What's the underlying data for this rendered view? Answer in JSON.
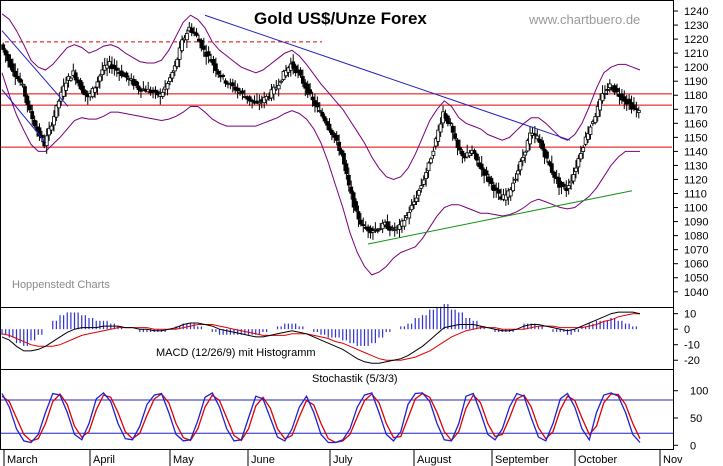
{
  "header": {
    "title": "Gold US$/Unze Forex",
    "website": "www.chartbuero.de",
    "source_label": "Hoppenstedt Charts"
  },
  "colors": {
    "candle": "#000000",
    "bollinger": "#7a007a",
    "support_resistance": "#e00000",
    "trendline_down": "#2020c0",
    "trendline_up": "#109010",
    "macd_line": "#000000",
    "macd_signal": "#e00000",
    "histogram": "#3030d0",
    "stoch_k": "#2020d0",
    "stoch_d": "#e00000",
    "axis_box": "#000000"
  },
  "chart_data": [
    {
      "type": "candlestick",
      "title": "Gold US$/Unze Forex",
      "y_ticks": [
        1040,
        1050,
        1060,
        1070,
        1080,
        1090,
        1100,
        1110,
        1120,
        1130,
        1140,
        1150,
        1160,
        1170,
        1180,
        1190,
        1200,
        1210,
        1220,
        1230,
        1240
      ],
      "ylim": [
        1032,
        1245
      ],
      "months": [
        "March",
        "April",
        "May",
        "June",
        "July",
        "August",
        "September",
        "October",
        "Nov"
      ],
      "horizontal_lines": [
        {
          "level": 1181,
          "color": "red",
          "style": "solid"
        },
        {
          "level": 1173,
          "color": "red",
          "style": "solid"
        },
        {
          "level": 1143,
          "color": "red",
          "style": "solid"
        },
        {
          "level": 1218,
          "color": "red",
          "style": "dashed",
          "from": "March",
          "to": "June"
        }
      ],
      "trendlines": [
        {
          "name": "downtrend",
          "color": "blue",
          "from": [
            "May",
            1237
          ],
          "to": [
            "October",
            1148
          ]
        },
        {
          "name": "uptrend",
          "color": "green",
          "from": [
            "July",
            1074
          ],
          "to": [
            "October",
            1112
          ]
        }
      ],
      "close_path": [
        1216,
        1205,
        1195,
        1186,
        1168,
        1155,
        1145,
        1160,
        1176,
        1190,
        1196,
        1186,
        1178,
        1186,
        1198,
        1202,
        1198,
        1194,
        1190,
        1185,
        1184,
        1182,
        1180,
        1188,
        1200,
        1218,
        1228,
        1222,
        1212,
        1205,
        1196,
        1190,
        1186,
        1182,
        1178,
        1174,
        1176,
        1180,
        1186,
        1195,
        1202,
        1196,
        1186,
        1176,
        1168,
        1160,
        1150,
        1138,
        1115,
        1096,
        1086,
        1084,
        1085,
        1088,
        1084,
        1086,
        1094,
        1104,
        1116,
        1130,
        1148,
        1168,
        1158,
        1142,
        1136,
        1140,
        1130,
        1122,
        1114,
        1106,
        1110,
        1122,
        1136,
        1152,
        1150,
        1138,
        1126,
        1116,
        1113,
        1124,
        1140,
        1154,
        1166,
        1180,
        1187,
        1182,
        1177,
        1172,
        1168
      ],
      "bollinger_upper": [
        1238,
        1234,
        1226,
        1216,
        1205,
        1200,
        1198,
        1202,
        1208,
        1214,
        1216,
        1214,
        1210,
        1212,
        1215,
        1216,
        1214,
        1210,
        1207,
        1204,
        1203,
        1203,
        1205,
        1212,
        1222,
        1232,
        1237,
        1234,
        1228,
        1218,
        1212,
        1208,
        1204,
        1200,
        1198,
        1196,
        1198,
        1202,
        1206,
        1210,
        1212,
        1208,
        1202,
        1195,
        1188,
        1182,
        1176,
        1170,
        1162,
        1154,
        1146,
        1136,
        1128,
        1122,
        1120,
        1122,
        1128,
        1138,
        1150,
        1162,
        1170,
        1176,
        1172,
        1164,
        1160,
        1158,
        1156,
        1152,
        1150,
        1148,
        1150,
        1155,
        1160,
        1164,
        1164,
        1160,
        1155,
        1150,
        1148,
        1152,
        1160,
        1172,
        1185,
        1196,
        1200,
        1202,
        1202,
        1200,
        1198
      ],
      "bollinger_lower": [
        1196,
        1180,
        1166,
        1155,
        1145,
        1140,
        1140,
        1145,
        1150,
        1156,
        1162,
        1164,
        1163,
        1163,
        1165,
        1168,
        1168,
        1167,
        1166,
        1165,
        1164,
        1163,
        1162,
        1163,
        1165,
        1168,
        1172,
        1172,
        1168,
        1163,
        1160,
        1158,
        1158,
        1158,
        1158,
        1158,
        1160,
        1162,
        1164,
        1167,
        1169,
        1167,
        1163,
        1156,
        1146,
        1132,
        1116,
        1100,
        1082,
        1068,
        1058,
        1052,
        1054,
        1058,
        1064,
        1068,
        1070,
        1072,
        1078,
        1086,
        1094,
        1100,
        1102,
        1102,
        1100,
        1098,
        1096,
        1096,
        1095,
        1094,
        1095,
        1097,
        1100,
        1104,
        1106,
        1104,
        1102,
        1100,
        1099,
        1100,
        1104,
        1108,
        1114,
        1122,
        1130,
        1136,
        1140,
        1140,
        1140
      ]
    },
    {
      "type": "bar",
      "title": "MACD (12/26/9) mit Histogramm",
      "y_ticks": [
        10,
        0,
        -10,
        -20
      ],
      "ylim": [
        -25,
        13
      ],
      "macd": [
        -5,
        -7,
        -11,
        -14,
        -14,
        -13,
        -11,
        -8,
        -5,
        -2,
        0,
        1,
        1,
        1,
        2,
        2,
        2,
        1,
        1,
        0,
        0,
        -1,
        -1,
        0,
        1,
        3,
        4,
        4,
        3,
        2,
        0,
        -1,
        -2,
        -3,
        -4,
        -5,
        -5,
        -4,
        -3,
        -2,
        -1,
        -2,
        -3,
        -5,
        -7,
        -9,
        -11,
        -13,
        -16,
        -19,
        -21,
        -22,
        -22,
        -21,
        -20,
        -19,
        -17,
        -14,
        -11,
        -7,
        -3,
        1,
        2,
        3,
        3,
        3,
        2,
        1,
        0,
        -1,
        -1,
        0,
        2,
        3,
        3,
        2,
        1,
        0,
        -1,
        0,
        2,
        4,
        6,
        8,
        10,
        11,
        11,
        11,
        10
      ],
      "signal": [
        -3,
        -4,
        -6,
        -8,
        -10,
        -11,
        -11,
        -11,
        -10,
        -8,
        -6,
        -4,
        -3,
        -2,
        -1,
        0,
        1,
        1,
        1,
        1,
        1,
        0,
        0,
        0,
        0,
        1,
        2,
        3,
        3,
        3,
        2,
        1,
        0,
        -1,
        -2,
        -3,
        -4,
        -4,
        -4,
        -4,
        -3,
        -3,
        -3,
        -4,
        -5,
        -6,
        -8,
        -9,
        -11,
        -13,
        -15,
        -17,
        -19,
        -20,
        -20,
        -20,
        -19,
        -18,
        -16,
        -14,
        -11,
        -8,
        -5,
        -3,
        -1,
        0,
        1,
        1,
        1,
        0,
        0,
        0,
        0,
        1,
        2,
        2,
        2,
        1,
        1,
        1,
        1,
        2,
        3,
        5,
        6,
        8,
        9,
        10,
        10
      ]
    },
    {
      "type": "line",
      "title": "Stochastik (5/3/3)",
      "y_ticks": [
        100,
        50,
        0
      ],
      "ylim": [
        -5,
        105
      ],
      "reference_lines": [
        83,
        22
      ],
      "k": [
        95,
        70,
        30,
        8,
        5,
        20,
        60,
        95,
        92,
        60,
        20,
        10,
        40,
        85,
        96,
        80,
        40,
        12,
        10,
        35,
        75,
        92,
        95,
        60,
        20,
        8,
        10,
        45,
        88,
        96,
        70,
        30,
        8,
        10,
        50,
        90,
        85,
        50,
        15,
        8,
        30,
        70,
        90,
        60,
        20,
        5,
        5,
        10,
        30,
        70,
        92,
        96,
        60,
        20,
        8,
        25,
        75,
        95,
        96,
        80,
        40,
        10,
        8,
        40,
        90,
        95,
        60,
        20,
        10,
        30,
        70,
        95,
        90,
        50,
        15,
        8,
        40,
        85,
        95,
        70,
        30,
        10,
        60,
        92,
        96,
        90,
        60,
        20,
        5
      ],
      "d": [
        90,
        80,
        50,
        20,
        8,
        12,
        40,
        80,
        94,
        75,
        35,
        15,
        25,
        65,
        92,
        88,
        60,
        25,
        12,
        22,
        55,
        85,
        94,
        78,
        40,
        14,
        9,
        30,
        70,
        92,
        82,
        50,
        18,
        9,
        30,
        72,
        88,
        68,
        30,
        12,
        18,
        52,
        82,
        74,
        40,
        12,
        5,
        8,
        20,
        52,
        82,
        94,
        78,
        40,
        14,
        16,
        50,
        85,
        95,
        88,
        60,
        25,
        9,
        25,
        68,
        92,
        78,
        40,
        16,
        20,
        50,
        85,
        92,
        70,
        32,
        12,
        25,
        65,
        90,
        82,
        50,
        20,
        35,
        78,
        94,
        93,
        75,
        40,
        12
      ]
    }
  ]
}
